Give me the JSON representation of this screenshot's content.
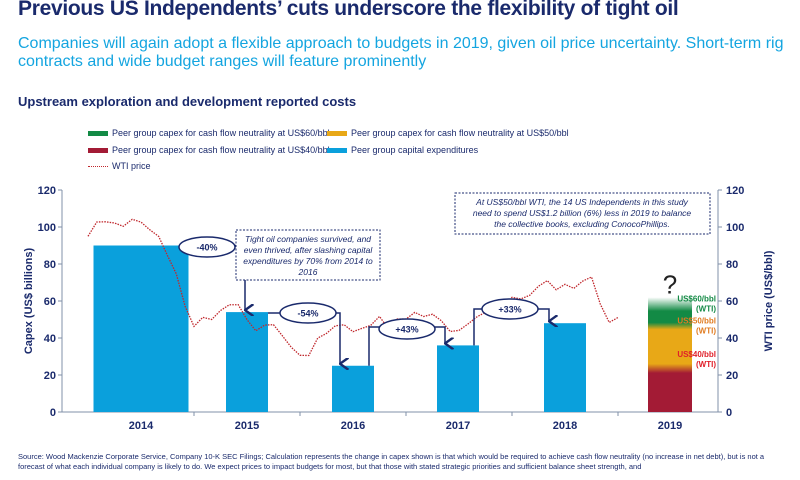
{
  "title": "Previous US Independents’ cuts underscore the flexibility of tight oil",
  "subtitle": "Companies will again adopt a flexible approach to budgets in 2019, given oil price uncertainty. Short-term rig contracts and wide budget ranges will feature prominently",
  "footer": "Source: Wood Mackenzie Corporate Service, Company 10-K SEC Filings;  Calculation represents the change in capex shown is that which would be required to achieve cash flow neutrality (no increase in net debt), but is not a forecast of what each individual company is likely to do. We expect prices to impact budgets for most, but that those with stated strategic priorities and sufficient balance sheet strength, and",
  "colors": {
    "capex": "#0aa0dc",
    "wti": "#c0282d",
    "green": "#138a45",
    "yellow": "#e8a817",
    "red": "#a31b35",
    "navy": "#1a2a6c"
  },
  "chart_data": {
    "type": "bar",
    "title": "Upstream exploration and development reported costs",
    "ylabel": "Capex (US$ billions)",
    "y2label": "WTI price (US$/bbl)",
    "ylim": [
      0,
      120
    ],
    "y2lim": [
      0,
      120
    ],
    "yticks": [
      "0",
      "20",
      "40",
      "60",
      "80",
      "100",
      "120"
    ],
    "categories": [
      "2014",
      "2015",
      "2016",
      "2017",
      "2018",
      "2019"
    ],
    "legend": [
      "Peer group capex for cash flow neutrality at US$60/bbl",
      "Peer group capex for cash flow neutrality at US$50/bbl",
      "Peer group capex for cash flow neutrality at US$40/bbl",
      "Peer group capital expenditures",
      "WTI price"
    ],
    "series": [
      {
        "name": "Peer group capital expenditures",
        "values": [
          90,
          54,
          25,
          36,
          48,
          null
        ]
      },
      {
        "name": "Peer group capex for cash flow neutrality at US$40/bbl",
        "values": [
          null,
          null,
          null,
          null,
          null,
          24
        ]
      },
      {
        "name": "Peer group capex for cash flow neutrality at US$50/bbl",
        "values": [
          null,
          null,
          null,
          null,
          null,
          48
        ]
      },
      {
        "name": "Peer group capex for cash flow neutrality at US$60/bbl",
        "values": [
          null,
          null,
          null,
          null,
          null,
          62
        ]
      }
    ],
    "wti_monthly": {
      "start": "2014-01",
      "values": [
        95,
        101,
        101,
        102,
        102,
        106,
        103,
        97,
        93,
        84,
        76,
        59,
        47,
        50,
        48,
        54,
        59,
        60,
        51,
        43,
        45,
        46,
        42,
        37,
        32,
        30,
        38,
        41,
        47,
        49,
        45,
        45,
        45,
        50,
        45,
        52,
        52,
        54,
        50,
        51,
        49,
        45,
        46,
        48,
        50,
        52,
        57,
        58,
        64,
        62,
        62,
        66,
        70,
        67,
        71,
        68,
        70,
        71,
        57,
        49,
        53
      ]
    },
    "changes": [
      "-40%",
      "-54%",
      "+43%",
      "+33%"
    ],
    "labels2019": {
      "q": "?",
      "l60": "US$60/bbl",
      "l50": "US$50/bbl",
      "l40": "US$40/bbl",
      "wti": "(WTI)"
    },
    "annotation1": [
      "Tight oil companies survived, and",
      "even thrived, after slashing capital",
      "expenditures by 70% from 2014 to",
      "2016"
    ],
    "annotation2": [
      "At US$50/bbl WTI, the 14 US Independents in this study",
      "need to spend US$1.2 billion (6%) less in 2019 to balance",
      "the collective books, excluding ConocoPhillips."
    ]
  }
}
